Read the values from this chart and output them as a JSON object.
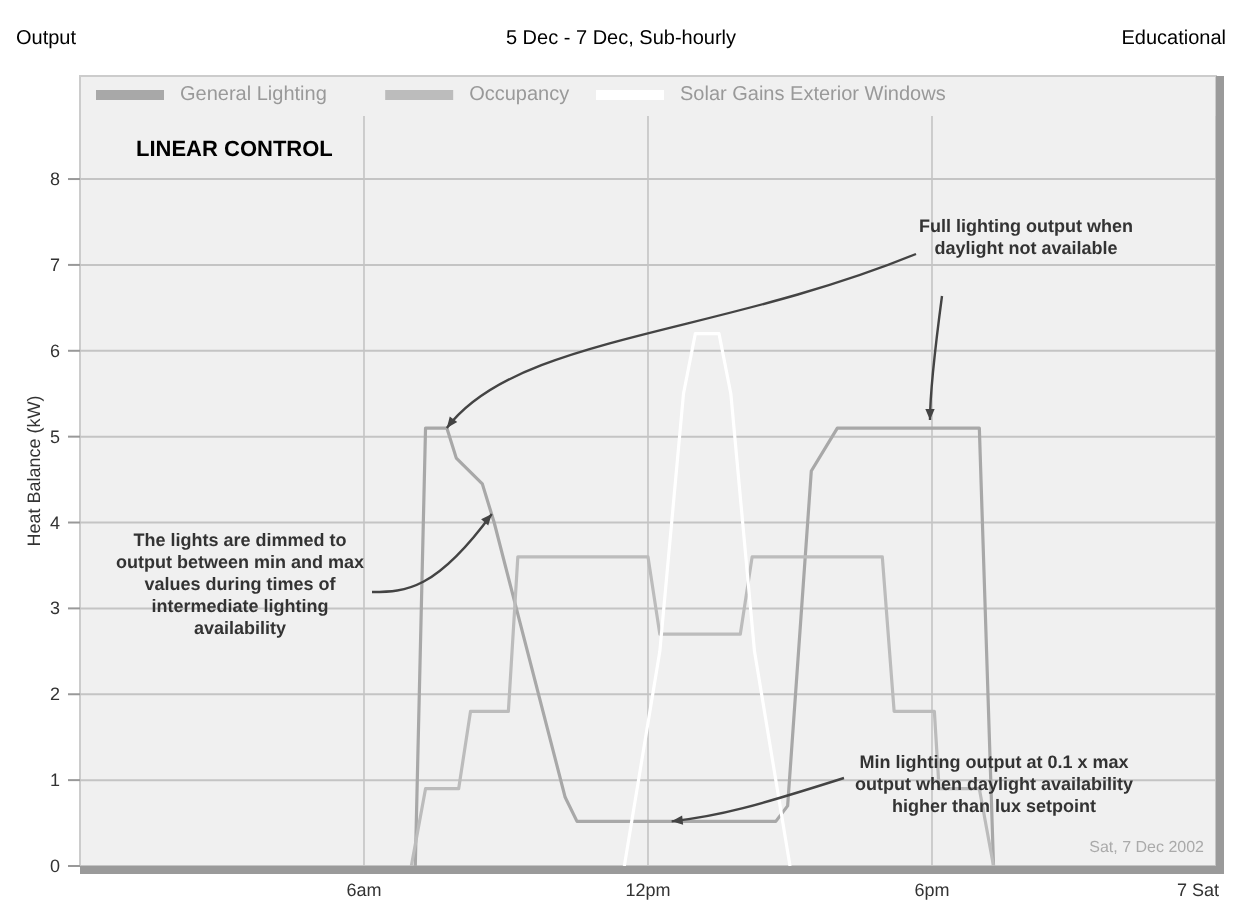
{
  "chart_data": {
    "type": "line",
    "title": "5 Dec - 7 Dec, Sub-hourly",
    "ylabel": "Heat Balance (kW)",
    "xlim": [
      "2002-12-06T00:00",
      "2002-12-07T00:00"
    ],
    "xticks": [
      {
        "value": "2002-12-06T06:00",
        "label": "6am"
      },
      {
        "value": "2002-12-06T12:00",
        "label": "12pm"
      },
      {
        "value": "2002-12-06T18:00",
        "label": "6pm"
      },
      {
        "value": "2002-12-07T00:00",
        "label": "7 Sat"
      }
    ],
    "ylim": [
      0,
      9.2
    ],
    "yticks": [
      0,
      1,
      2,
      3,
      4,
      5,
      6,
      7,
      8
    ],
    "grid": true,
    "legend": "top left",
    "marker": "none",
    "line_style": "solid",
    "series": [
      {
        "name": "General Lighting",
        "color": "#a8a8a8",
        "x": [
          "2002-12-06T07:05",
          "2002-12-06T07:18",
          "2002-12-06T07:45",
          "2002-12-06T07:57",
          "2002-12-06T08:30",
          "2002-12-06T08:45",
          "2002-12-06T10:15",
          "2002-12-06T10:30",
          "2002-12-06T14:42",
          "2002-12-06T14:57",
          "2002-12-06T15:27",
          "2002-12-06T16:00",
          "2002-12-06T19:00",
          "2002-12-06T19:18"
        ],
        "values": [
          0,
          5.1,
          5.1,
          4.75,
          4.45,
          4.0,
          0.8,
          0.52,
          0.52,
          0.7,
          4.6,
          5.1,
          5.1,
          0
        ]
      },
      {
        "name": "Occupancy",
        "color": "#bcbcbc",
        "x": [
          "2002-12-06T07:00",
          "2002-12-06T07:18",
          "2002-12-06T08:00",
          "2002-12-06T08:15",
          "2002-12-06T09:03",
          "2002-12-06T09:15",
          "2002-12-06T12:00",
          "2002-12-06T12:15",
          "2002-12-06T13:57",
          "2002-12-06T14:12",
          "2002-12-06T16:57",
          "2002-12-06T17:12",
          "2002-12-06T18:03",
          "2002-12-06T18:09",
          "2002-12-06T19:00",
          "2002-12-06T19:18"
        ],
        "values": [
          0,
          0.9,
          0.9,
          1.8,
          1.8,
          3.6,
          3.6,
          2.7,
          2.7,
          3.6,
          3.6,
          1.8,
          1.8,
          0.9,
          0.9,
          0
        ]
      },
      {
        "name": "Solar Gains Exterior Windows",
        "color": "#ffffff",
        "x": [
          "2002-12-06T11:30",
          "2002-12-06T12:15",
          "2002-12-06T12:45",
          "2002-12-06T13:00",
          "2002-12-06T13:30",
          "2002-12-06T13:45",
          "2002-12-06T14:15",
          "2002-12-06T15:00"
        ],
        "values": [
          0,
          2.5,
          5.5,
          6.2,
          6.2,
          5.5,
          2.5,
          0
        ]
      }
    ],
    "annotations": [
      "Output",
      "Educational",
      "LINEAR CONTROL",
      {
        "text": "Full lighting output when daylight not available",
        "x": "2002-12-06T07:45",
        "y": 5.1
      },
      {
        "text": "The lights are dimmed to output between min and max values during times of intermediate lighting availability",
        "x": "2002-12-06T08:42",
        "y": 4.1
      },
      {
        "text": "Min lighting output at 0.1 x max output when daylight availability higher than lux setpoint",
        "x": "2002-12-06T12:30",
        "y": 0.52
      },
      "Sat, 7 Dec 2002"
    ]
  }
}
